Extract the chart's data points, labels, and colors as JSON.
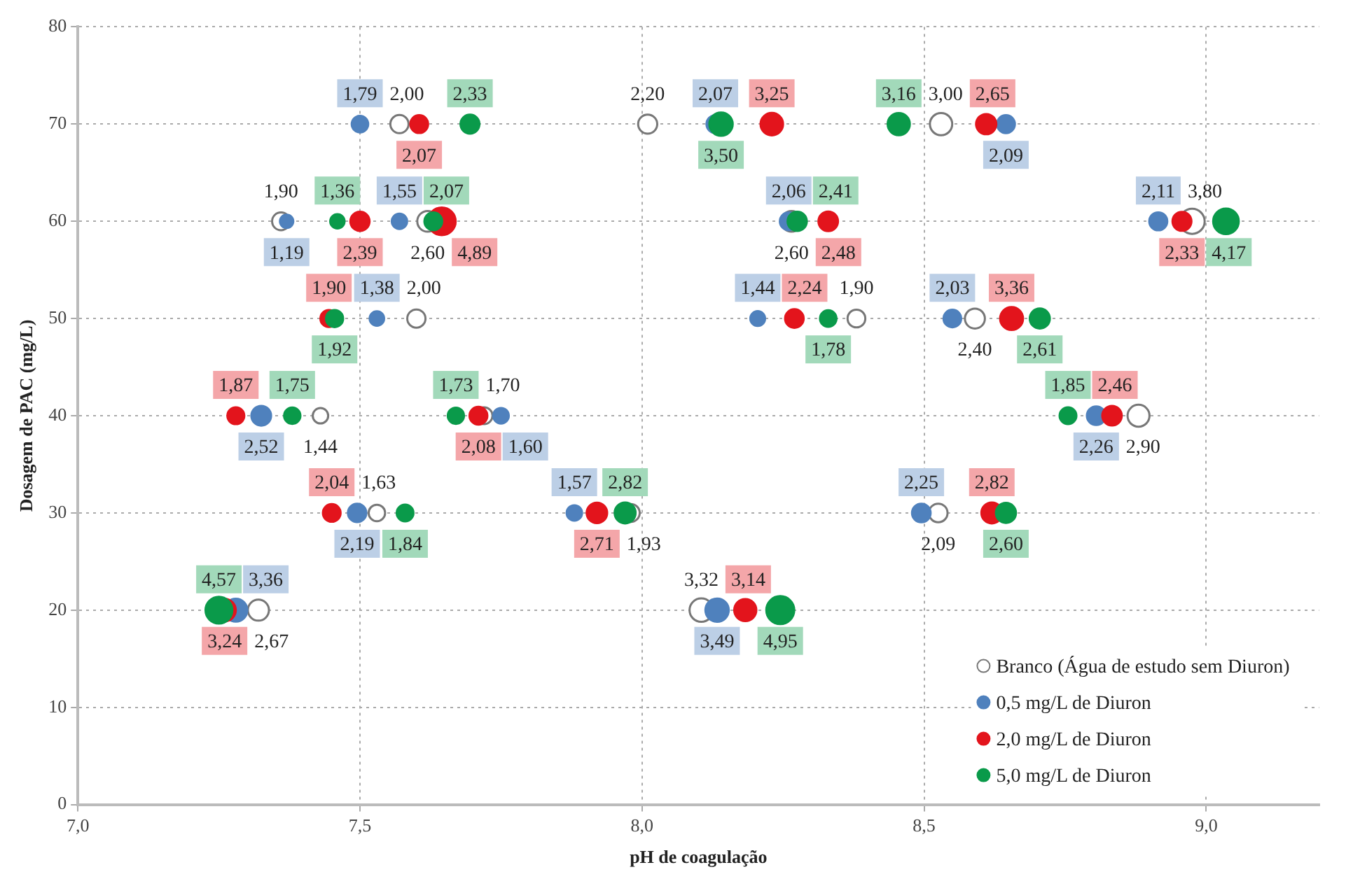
{
  "chart_data": {
    "type": "bubble",
    "xlabel": "pH de coagulação",
    "ylabel": "Dosagem de PAC (mg/L)",
    "xlim": [
      7.0,
      9.2
    ],
    "xticks": [
      {
        "value": 7.0,
        "label": "7,0"
      },
      {
        "value": 7.5,
        "label": "7,5"
      },
      {
        "value": 8.0,
        "label": "8,0"
      },
      {
        "value": 8.5,
        "label": "8,5"
      },
      {
        "value": 9.0,
        "label": "9,0"
      }
    ],
    "ylim": [
      0,
      80
    ],
    "yticks": [
      0,
      10,
      20,
      30,
      40,
      50,
      60,
      70,
      80
    ],
    "grid": true,
    "legend": "bottom right",
    "series": [
      {
        "name": "Branco (Água de estudo sem Diuron)",
        "color": "#ffffff",
        "x": [
          7.57,
          8.01,
          8.53,
          7.36,
          7.62,
          8.265,
          8.975,
          7.6,
          8.38,
          8.59,
          7.43,
          7.72,
          8.88,
          7.53,
          7.98,
          8.525,
          7.32,
          8.105
        ],
        "values": [
          70,
          70,
          70,
          60,
          60,
          60,
          60,
          50,
          50,
          50,
          40,
          40,
          40,
          30,
          30,
          30,
          20,
          20
        ],
        "sizes": [
          2.0,
          2.2,
          3.0,
          1.9,
          2.6,
          2.6,
          3.8,
          2.0,
          1.9,
          2.4,
          1.44,
          1.7,
          2.9,
          1.63,
          1.93,
          2.09,
          2.67,
          3.32
        ],
        "value_labels": [
          "2,00",
          "2,20",
          "3,00",
          "1,90",
          "2,60",
          "2,60",
          "3,80",
          "2,00",
          "1,90",
          "2,40",
          "1,44",
          "1,70",
          "2,90",
          "1,63",
          "1,93",
          "2,09",
          "2,67",
          "3,32"
        ]
      },
      {
        "name": "0,5 mg/L de Diuron",
        "color": "#4f81bd",
        "x": [
          7.5,
          8.13,
          8.645,
          7.37,
          7.57,
          8.26,
          8.915,
          7.53,
          8.205,
          8.55,
          7.325,
          7.75,
          8.805,
          7.495,
          7.88,
          8.495,
          7.28,
          8.133
        ],
        "values": [
          70,
          70,
          70,
          60,
          60,
          60,
          60,
          50,
          50,
          50,
          40,
          40,
          40,
          30,
          30,
          30,
          20,
          20
        ],
        "sizes": [
          1.79,
          2.07,
          2.09,
          1.19,
          1.55,
          2.06,
          2.11,
          1.38,
          1.44,
          2.03,
          2.52,
          1.6,
          2.26,
          2.19,
          1.57,
          2.25,
          3.36,
          3.49
        ],
        "value_labels": [
          "1,79",
          "2,07",
          "2,09",
          "1,19",
          "1,55",
          "2,06",
          "2,11",
          "1,38",
          "1,44",
          "2,03",
          "2,52",
          "1,60",
          "2,26",
          "2,19",
          "1,57",
          "2,25",
          "3,36",
          "3,49"
        ]
      },
      {
        "name": "2,0 mg/L de Diuron",
        "color": "#e3141c",
        "x": [
          7.605,
          8.23,
          8.61,
          7.5,
          7.645,
          8.33,
          8.957,
          7.445,
          8.27,
          8.655,
          7.28,
          7.71,
          8.833,
          7.45,
          7.92,
          8.62,
          7.26,
          8.183
        ],
        "values": [
          70,
          70,
          70,
          60,
          60,
          60,
          60,
          50,
          50,
          50,
          40,
          40,
          40,
          30,
          30,
          30,
          20,
          20
        ],
        "sizes": [
          2.07,
          3.25,
          2.65,
          2.39,
          4.89,
          2.48,
          2.33,
          1.9,
          2.24,
          3.36,
          1.87,
          2.08,
          2.46,
          2.04,
          2.71,
          2.82,
          3.24,
          3.14
        ],
        "value_labels": [
          "2,07",
          "3,25",
          "2,65",
          "2,39",
          "4,89",
          "2,48",
          "2,33",
          "1,90",
          "2,24",
          "3,36",
          "1,87",
          "2,08",
          "2,46",
          "2,04",
          "2,71",
          "2,82",
          "3,24",
          "3,14"
        ]
      },
      {
        "name": "5,0 mg/L de Diuron",
        "color": "#0a9a4a",
        "x": [
          7.695,
          8.14,
          8.455,
          7.46,
          7.63,
          8.275,
          9.035,
          7.455,
          8.33,
          8.705,
          7.38,
          7.67,
          8.755,
          7.58,
          7.97,
          8.645,
          7.25,
          8.245
        ],
        "values": [
          70,
          70,
          70,
          60,
          60,
          60,
          60,
          50,
          50,
          50,
          40,
          40,
          40,
          30,
          30,
          30,
          20,
          20
        ],
        "sizes": [
          2.33,
          3.5,
          3.16,
          1.36,
          2.07,
          2.41,
          4.17,
          1.92,
          1.78,
          2.61,
          1.75,
          1.73,
          1.85,
          1.84,
          2.82,
          2.6,
          4.57,
          4.95
        ],
        "value_labels": [
          "2,33",
          "3,50",
          "3,16",
          "1,36",
          "2,07",
          "2,41",
          "4,17",
          "1,92",
          "1,78",
          "2,61",
          "1,75",
          "1,73",
          "1,85",
          "1,84",
          "2,82",
          "2,60",
          "4,57",
          "4,95"
        ]
      }
    ]
  }
}
